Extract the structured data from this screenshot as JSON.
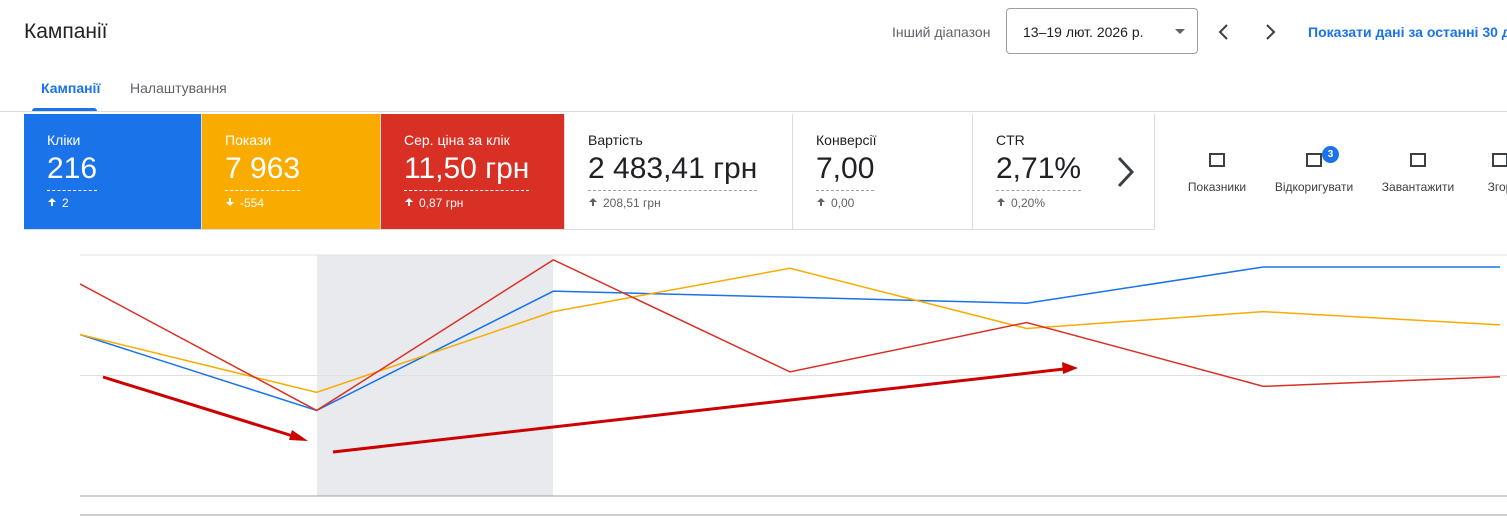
{
  "header": {
    "title": "Кампанії",
    "range_label": "Інший діапазон",
    "date_range": "13–19 лют. 2026 р.",
    "link": "Показати дані за останні 30 д"
  },
  "tabs": [
    "Кампанії",
    "Налаштування"
  ],
  "metrics": [
    {
      "label": "Кліки",
      "value": "216",
      "change": "2",
      "direction": "up",
      "color": "#1a73e8"
    },
    {
      "label": "Покази",
      "value": "7 963",
      "change": "-554",
      "direction": "down",
      "color": "#f9ab00"
    },
    {
      "label": "Сер. ціна за клік",
      "value": "11,50 грн",
      "change": "0,87 грн",
      "direction": "up",
      "color": "#d93025"
    },
    {
      "label": "Вартість",
      "value": "2 483,41 грн",
      "change": "208,51 грн",
      "direction": "up"
    },
    {
      "label": "Конверсії",
      "value": "7,00",
      "change": "0,00",
      "direction": "up"
    },
    {
      "label": "CTR",
      "value": "2,71%",
      "change": "0,20%",
      "direction": "up"
    }
  ],
  "tools": [
    {
      "label": "Показники"
    },
    {
      "label": "Відкоригувати",
      "badge": "3"
    },
    {
      "label": "Завантажити"
    },
    {
      "label": "Згор"
    }
  ],
  "chart_data": {
    "type": "line",
    "categories": [
      null,
      null,
      null,
      null,
      null,
      null,
      null
    ],
    "series": [
      {
        "color": "#1a73e8",
        "values": [
          1.34,
          0.71,
          1.7,
          1.65,
          1.6,
          1.9,
          1.9
        ]
      },
      {
        "color": "#f9ab00",
        "values": [
          1.34,
          0.86,
          1.53,
          1.89,
          1.39,
          1.53,
          1.42
        ]
      },
      {
        "color": "#d93025",
        "values": [
          1.76,
          0.71,
          1.96,
          1.03,
          1.44,
          0.91,
          0.99
        ]
      }
    ],
    "ylim": [
      0,
      2
    ],
    "yticks": [
      0,
      1,
      2
    ],
    "grid": true
  }
}
